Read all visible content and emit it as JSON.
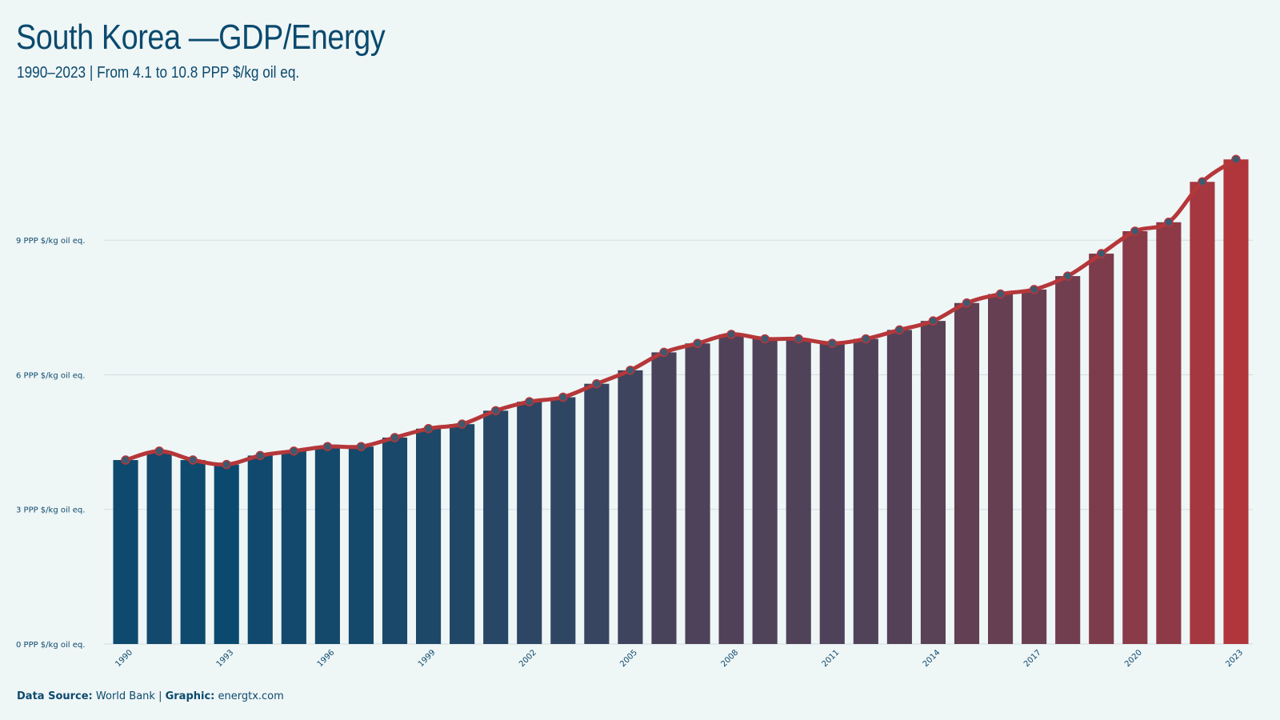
{
  "title": "South Korea —GDP/Energy",
  "subtitle": "1990–2023 | From 4.1 to 10.8 PPP $/kg oil eq.",
  "footer": {
    "source_label": "Data Source:",
    "source_value": " World Bank | ",
    "graphic_label": "Graphic:",
    "graphic_value": " energtx.com"
  },
  "colors": {
    "background": "#eff6f6",
    "start_bar": "#0b4a6e",
    "end_bar": "#b0363b",
    "line": "#b5373a",
    "marker": "#3d5a70",
    "grid": "#d2dde2"
  },
  "chart_data": {
    "type": "bar",
    "x": [
      1990,
      1991,
      1992,
      1993,
      1994,
      1995,
      1996,
      1997,
      1998,
      1999,
      2000,
      2001,
      2002,
      2003,
      2004,
      2005,
      2006,
      2007,
      2008,
      2009,
      2010,
      2011,
      2012,
      2013,
      2014,
      2015,
      2016,
      2017,
      2018,
      2019,
      2020,
      2021,
      2022,
      2023
    ],
    "values": [
      4.1,
      4.3,
      4.1,
      4.0,
      4.2,
      4.3,
      4.4,
      4.4,
      4.6,
      4.8,
      4.9,
      5.2,
      5.4,
      5.5,
      5.8,
      6.1,
      6.5,
      6.7,
      6.9,
      6.8,
      6.8,
      6.7,
      6.8,
      7.0,
      7.2,
      7.6,
      7.8,
      7.9,
      8.2,
      8.7,
      9.2,
      9.4,
      10.3,
      10.8
    ],
    "line_overlay": true,
    "xtick_labels": [
      "1990",
      "1993",
      "1996",
      "1999",
      "2002",
      "2005",
      "2008",
      "2011",
      "2014",
      "2017",
      "2020",
      "2023"
    ],
    "ytick_values": [
      0,
      3,
      6,
      9
    ],
    "ytick_labels": [
      "0 PPP $/kg oil eq.",
      "3 PPP $/kg oil eq.",
      "6 PPP $/kg oil eq.",
      "9 PPP $/kg oil eq."
    ],
    "ylim": [
      0,
      11.5
    ],
    "xlabel": "",
    "ylabel": "",
    "grid": true,
    "legend": "none"
  }
}
